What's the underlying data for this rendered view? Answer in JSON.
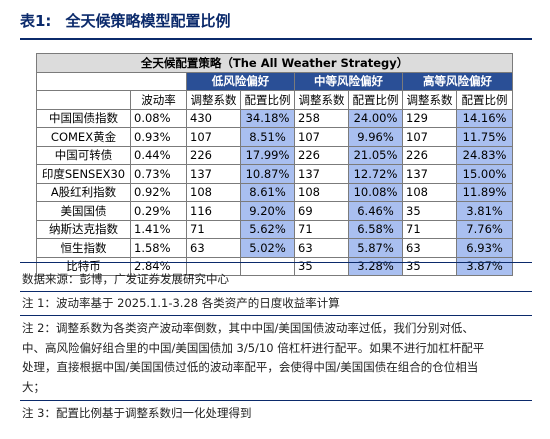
{
  "caption": {
    "label": "表1:",
    "title": "全天候策略模型配置比例"
  },
  "table": {
    "title": "全天候配置策略（The All Weather Strategy）",
    "groups": [
      "低风险偏好",
      "中等风险偏好",
      "高等风险偏好"
    ],
    "headers": {
      "vol": "波动率",
      "adj": "调整系数",
      "ratio": "配置比例"
    },
    "rows": [
      {
        "name": "中国国债指数",
        "vol": "0.08%",
        "low_adj": "430",
        "low_ratio": "34.18%",
        "mid_adj": "258",
        "mid_ratio": "24.00%",
        "high_adj": "129",
        "high_ratio": "14.16%"
      },
      {
        "name": "COMEX黄金",
        "vol": "0.93%",
        "low_adj": "107",
        "low_ratio": "8.51%",
        "mid_adj": "107",
        "mid_ratio": "9.96%",
        "high_adj": "107",
        "high_ratio": "11.75%"
      },
      {
        "name": "中国可转债",
        "vol": "0.44%",
        "low_adj": "226",
        "low_ratio": "17.99%",
        "mid_adj": "226",
        "mid_ratio": "21.05%",
        "high_adj": "226",
        "high_ratio": "24.83%"
      },
      {
        "name": "印度SENSEX30",
        "vol": "0.73%",
        "low_adj": "137",
        "low_ratio": "10.87%",
        "mid_adj": "137",
        "mid_ratio": "12.72%",
        "high_adj": "137",
        "high_ratio": "15.00%"
      },
      {
        "name": "A股红利指数",
        "vol": "0.92%",
        "low_adj": "108",
        "low_ratio": "8.61%",
        "mid_adj": "108",
        "mid_ratio": "10.08%",
        "high_adj": "108",
        "high_ratio": "11.89%"
      },
      {
        "name": "美国国债",
        "vol": "0.29%",
        "low_adj": "116",
        "low_ratio": "9.20%",
        "mid_adj": "69",
        "mid_ratio": "6.46%",
        "high_adj": "35",
        "high_ratio": "3.81%"
      },
      {
        "name": "纳斯达克指数",
        "vol": "1.41%",
        "low_adj": "71",
        "low_ratio": "5.62%",
        "mid_adj": "71",
        "mid_ratio": "6.58%",
        "high_adj": "71",
        "high_ratio": "7.76%"
      },
      {
        "name": "恒生指数",
        "vol": "1.58%",
        "low_adj": "63",
        "low_ratio": "5.02%",
        "mid_adj": "63",
        "mid_ratio": "5.87%",
        "high_adj": "63",
        "high_ratio": "6.93%"
      },
      {
        "name": "比特币",
        "vol": "2.84%",
        "low_adj": "",
        "low_ratio": "",
        "mid_adj": "35",
        "mid_ratio": "3.28%",
        "high_adj": "35",
        "high_ratio": "3.87%"
      }
    ]
  },
  "notes": {
    "source": "数据来源：彭博，广发证券发展研究中心",
    "note1": "注 1：波动率基于 2025.1.1-3.28 各类资产的日度收益率计算",
    "note2_line1": "注 2：调整系数为各类资产波动率倒数，其中中国/美国国债波动率过低，我们分别对低、",
    "note2_line2": "中、高风险偏好组合里的中国/美国国债加 3/5/10 倍杠杆进行配平。如果不进行加杠杆配平",
    "note2_line3": "处理，直接根据中国/美国国债过低的波动率配平，会使得中国/美国国债在组合的仓位相当",
    "note2_line4": "大；",
    "note3": "注 3：配置比例基于调整系数归一化处理得到"
  },
  "colors": {
    "caption": "#0b2a6b",
    "group_header": "#2a4f96",
    "ratio_fill": "#a9bff0",
    "title_fill": "#dcdcdc"
  }
}
